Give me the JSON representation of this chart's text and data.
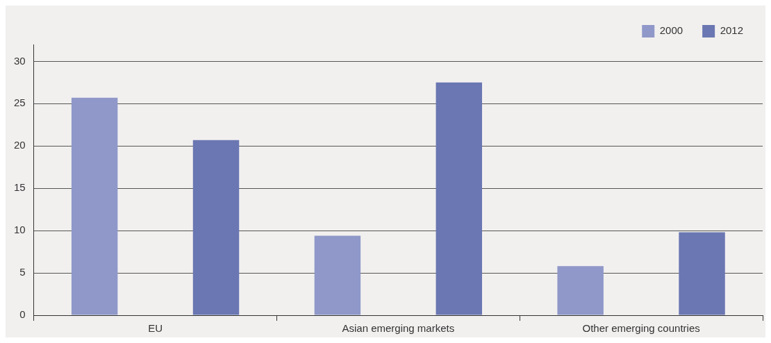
{
  "chart_data": {
    "type": "bar",
    "categories": [
      "EU",
      "Asian emerging markets",
      "Other emerging countries"
    ],
    "series": [
      {
        "name": "2000",
        "color": "#8f98c8",
        "values": [
          25.7,
          9.4,
          5.8
        ]
      },
      {
        "name": "2012",
        "color": "#6a77b2",
        "values": [
          20.7,
          27.5,
          9.8
        ]
      }
    ],
    "ylim": [
      0,
      32
    ],
    "yticks": [
      0,
      5,
      10,
      15,
      20,
      25,
      30
    ],
    "grid": "y",
    "legend": "top right"
  }
}
